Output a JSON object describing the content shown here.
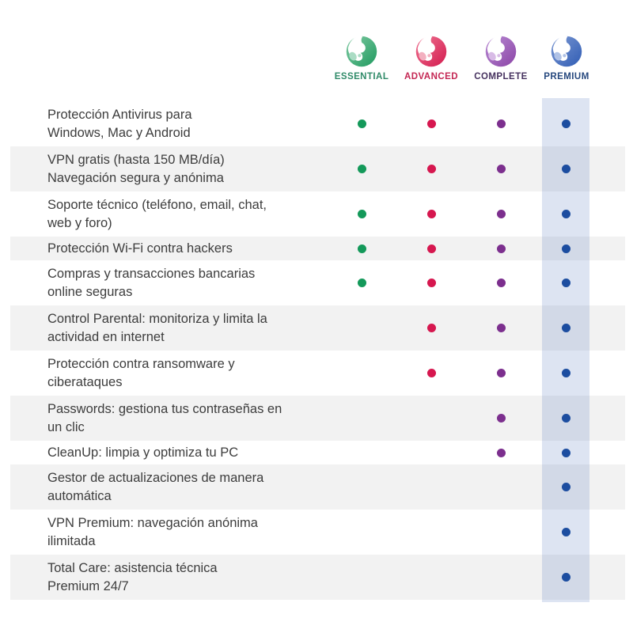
{
  "colors": {
    "row_stripe": "#f2f2f2",
    "feature_text": "#3d3d3d",
    "premium_band": "rgba(44,90,172,0.16)"
  },
  "plans": [
    {
      "id": "essential",
      "label": "ESSENTIAL",
      "label_color": "#2f8a68",
      "dot_color": "#14995a",
      "grad_light": "#82cba4",
      "grad_dark": "#1f9a5f",
      "tint": "#aadcc4",
      "icon": "panda-logo-green-icon",
      "highlighted": false
    },
    {
      "id": "advanced",
      "label": "ADVANCED",
      "label_color": "#c42753",
      "dot_color": "#d6174f",
      "grad_light": "#ef7493",
      "grad_dark": "#d31b4e",
      "tint": "#f3b0c0",
      "icon": "panda-logo-red-icon",
      "highlighted": false
    },
    {
      "id": "complete",
      "label": "COMPLETE",
      "label_color": "#46325f",
      "dot_color": "#7c2f8e",
      "grad_light": "#b98cd4",
      "grad_dark": "#8b44a6",
      "tint": "#d8bbe6",
      "icon": "panda-logo-purple-icon",
      "highlighted": false
    },
    {
      "id": "premium",
      "label": "PREMIUM",
      "label_color": "#26487e",
      "dot_color": "#1c4da0",
      "grad_light": "#7d99d3",
      "grad_dark": "#2f5cb4",
      "tint": "#b0c2e6",
      "icon": "panda-logo-blue-icon",
      "highlighted": true
    }
  ],
  "features": [
    {
      "label": "Protección Antivirus para\nWindows, Mac y Android",
      "included": [
        true,
        true,
        true,
        true
      ]
    },
    {
      "label": "VPN gratis (hasta 150 MB/día)\nNavegación segura y anónima",
      "included": [
        true,
        true,
        true,
        true
      ]
    },
    {
      "label": "Soporte técnico (teléfono, email, chat,\nweb y foro)",
      "included": [
        true,
        true,
        true,
        true
      ]
    },
    {
      "label": "Protección Wi-Fi contra hackers",
      "included": [
        true,
        true,
        true,
        true
      ]
    },
    {
      "label": "Compras y transacciones bancarias\nonline seguras",
      "included": [
        true,
        true,
        true,
        true
      ]
    },
    {
      "label": "Control Parental: monitoriza y limita la\nactividad en internet",
      "included": [
        false,
        true,
        true,
        true
      ]
    },
    {
      "label": "Protección contra ransomware y\nciberataques",
      "included": [
        false,
        true,
        true,
        true
      ]
    },
    {
      "label": "Passwords: gestiona tus contraseñas en\nun clic",
      "included": [
        false,
        false,
        true,
        true
      ]
    },
    {
      "label": "CleanUp: limpia y optimiza tu PC",
      "included": [
        false,
        false,
        true,
        true
      ]
    },
    {
      "label": "Gestor de actualizaciones de manera\nautomática",
      "included": [
        false,
        false,
        false,
        true
      ]
    },
    {
      "label": "VPN Premium: navegación anónima\nilimitada",
      "included": [
        false,
        false,
        false,
        true
      ]
    },
    {
      "label": "Total Care: asistencia técnica\nPremium 24/7",
      "included": [
        false,
        false,
        false,
        true
      ]
    }
  ]
}
